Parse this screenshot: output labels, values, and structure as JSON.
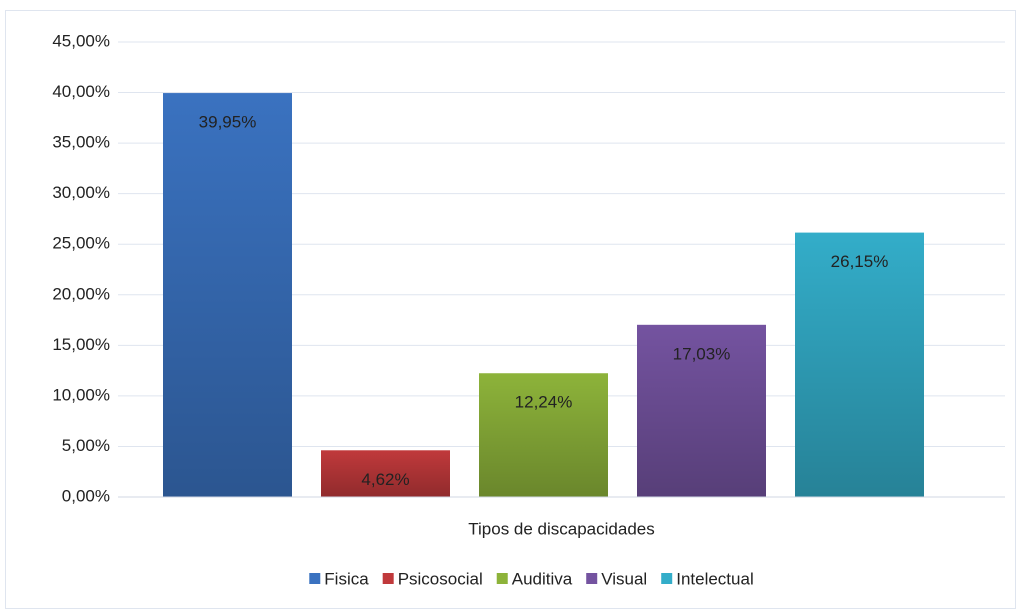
{
  "chart_data": {
    "type": "bar",
    "categories": [
      "Tipos de discapacidades"
    ],
    "series": [
      {
        "name": "Fisica",
        "color": "#3a72c0",
        "values": [
          39.95
        ],
        "value_labels": [
          "39,95%"
        ]
      },
      {
        "name": "Psicosocial",
        "color": "#c0393b",
        "values": [
          4.62
        ],
        "value_labels": [
          "4,62%"
        ]
      },
      {
        "name": "Auditiva",
        "color": "#8db33a",
        "values": [
          12.24
        ],
        "value_labels": [
          "12,24%"
        ]
      },
      {
        "name": "Visual",
        "color": "#7453a0",
        "values": [
          17.03
        ],
        "value_labels": [
          "17,03%"
        ]
      },
      {
        "name": "Intelectual",
        "color": "#33adc9",
        "values": [
          26.15
        ],
        "value_labels": [
          "26,15%"
        ]
      }
    ],
    "ylim": [
      0,
      45
    ],
    "yticks": [
      {
        "value": 0,
        "label": "0,00%"
      },
      {
        "value": 5,
        "label": "5,00%"
      },
      {
        "value": 10,
        "label": "10,00%"
      },
      {
        "value": 15,
        "label": "15,00%"
      },
      {
        "value": 20,
        "label": "20,00%"
      },
      {
        "value": 25,
        "label": "25,00%"
      },
      {
        "value": 30,
        "label": "30,00%"
      },
      {
        "value": 35,
        "label": "35,00%"
      },
      {
        "value": 40,
        "label": "40,00%"
      },
      {
        "value": 45,
        "label": "45,00%"
      }
    ],
    "grid": true,
    "legend": "bottom"
  }
}
